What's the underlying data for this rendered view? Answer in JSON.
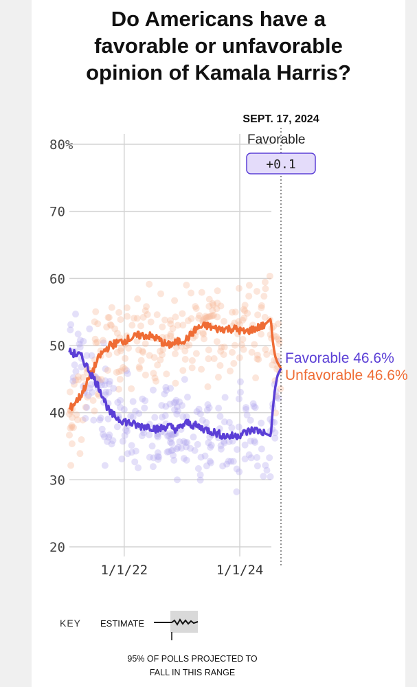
{
  "title": {
    "line1": "Do Americans have a",
    "line2": "favorable or unfavorable",
    "line3": "opinion of Kamala Harris?"
  },
  "date_label": "SEPT. 17, 2024",
  "tooltip": {
    "label": "Favorable",
    "value": "+0.1"
  },
  "end_labels": {
    "favorable": "Favorable 46.6%",
    "unfavorable": "Unfavorable 46.6%"
  },
  "key": {
    "heading": "KEY",
    "estimate": "ESTIMATE",
    "range_line1": "95% OF POLLS PROJECTED TO",
    "range_line2": "FALL IN THIS RANGE"
  },
  "colors": {
    "favorable": "#5b3fd6",
    "unfavorable": "#ef6c35",
    "favorable_dot": "#b3a6ee",
    "unfavorable_dot": "#f7b899",
    "tooltip_bg": "#e4dcfa"
  },
  "chart_data": {
    "type": "line",
    "title": "Do Americans have a favorable or unfavorable opinion of Kamala Harris?",
    "x_ticks": [
      "1/1/22",
      "1/1/24"
    ],
    "y_ticks": [
      "80%",
      "70",
      "60",
      "50",
      "40",
      "30",
      "20"
    ],
    "ylim": [
      20,
      80
    ],
    "xlim": [
      "2021-01-20",
      "2024-09-17"
    ],
    "grid": true,
    "series": [
      {
        "name": "Favorable",
        "x": [
          "2021-01-20",
          "2021-04-01",
          "2021-06-01",
          "2021-08-01",
          "2021-10-01",
          "2021-12-01",
          "2022-02-01",
          "2022-04-01",
          "2022-06-01",
          "2022-08-01",
          "2022-10-01",
          "2022-12-01",
          "2023-02-01",
          "2023-04-01",
          "2023-06-01",
          "2023-08-01",
          "2023-10-01",
          "2023-12-01",
          "2024-02-01",
          "2024-04-01",
          "2024-06-01",
          "2024-07-15",
          "2024-07-25",
          "2024-08-10",
          "2024-08-25",
          "2024-09-17"
        ],
        "values": [
          49,
          48.5,
          46,
          43.5,
          40,
          39,
          38.5,
          38,
          38,
          37.5,
          38,
          37.5,
          38.5,
          38,
          37.5,
          37,
          36.5,
          36.5,
          37,
          37.5,
          37,
          36.5,
          40,
          43.5,
          45.5,
          46.6
        ]
      },
      {
        "name": "Unfavorable",
        "x": [
          "2021-01-20",
          "2021-04-01",
          "2021-06-01",
          "2021-08-01",
          "2021-10-01",
          "2021-12-01",
          "2022-02-01",
          "2022-04-01",
          "2022-06-01",
          "2022-08-01",
          "2022-10-01",
          "2022-12-01",
          "2023-02-01",
          "2023-04-01",
          "2023-06-01",
          "2023-08-01",
          "2023-10-01",
          "2023-12-01",
          "2024-02-01",
          "2024-04-01",
          "2024-06-01",
          "2024-07-15",
          "2024-07-25",
          "2024-08-10",
          "2024-08-25",
          "2024-09-17"
        ],
        "values": [
          40.5,
          42.5,
          45.5,
          48.5,
          50,
          50.5,
          51,
          51.5,
          51.5,
          51,
          50,
          50.5,
          51,
          52.5,
          53,
          52.5,
          52.5,
          52.5,
          52,
          52.5,
          53,
          54,
          51,
          48.5,
          47.5,
          46.6
        ]
      }
    ]
  }
}
